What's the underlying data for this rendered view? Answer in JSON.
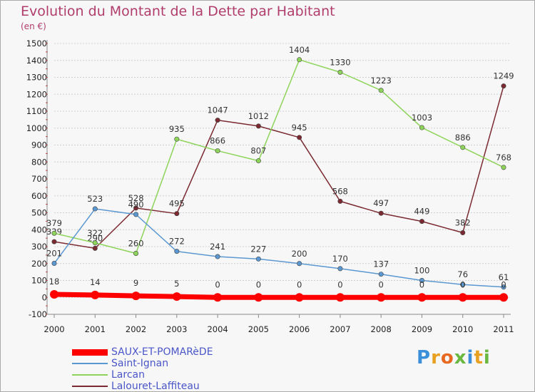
{
  "title": "Evolution du Montant de la Dette par Habitant",
  "unit": "(en €)",
  "logo": "Proxiti",
  "colors": {
    "title": "#b03d6b",
    "grid": "#d0d0d0",
    "legend_text": "#4a56c8"
  },
  "chart_data": {
    "type": "line",
    "title": "Evolution du Montant de la Dette par Habitant",
    "ylabel": "(en €)",
    "xlabel": "",
    "ylim": [
      -100,
      1500
    ],
    "yticks": [
      -100,
      0,
      100,
      200,
      300,
      400,
      500,
      600,
      700,
      800,
      900,
      1000,
      1100,
      1200,
      1300,
      1400,
      1500
    ],
    "x": [
      "2000",
      "2001",
      "2002",
      "2003",
      "2004",
      "2005",
      "2006",
      "2007",
      "2008",
      "2009",
      "2010",
      "2011"
    ],
    "grid": "horizontal",
    "legend_position": "bottom-left",
    "series": [
      {
        "name": "SAUX-ET-POMARèDE",
        "color": "#ff0000",
        "values": [
          18,
          14,
          9,
          5,
          0,
          0,
          0,
          0,
          0,
          0,
          0,
          0
        ]
      },
      {
        "name": "Saint-Ignan",
        "color": "#5b97d1",
        "values": [
          201,
          523,
          490,
          272,
          241,
          227,
          200,
          170,
          137,
          100,
          76,
          61
        ]
      },
      {
        "name": "Larcan",
        "color": "#8ed45a",
        "values": [
          379,
          322,
          260,
          935,
          866,
          807,
          1404,
          1330,
          1223,
          1003,
          886,
          768
        ]
      },
      {
        "name": "Lalouret-Laffiteau",
        "color": "#7a2a30",
        "values": [
          329,
          290,
          528,
          495,
          1047,
          1012,
          945,
          568,
          497,
          449,
          382,
          1249
        ]
      }
    ]
  }
}
